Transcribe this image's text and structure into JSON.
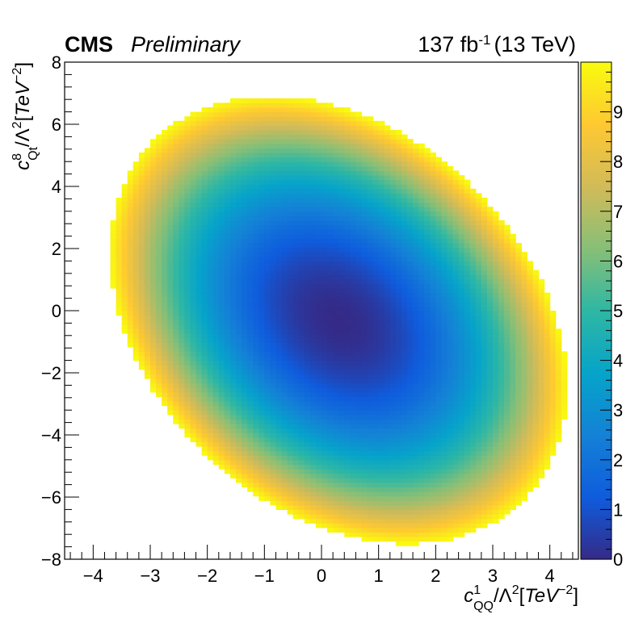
{
  "header": {
    "experiment": "CMS",
    "status": "Preliminary",
    "lumi_prefix": "137 fb",
    "lumi_exponent": "-1",
    "energy": "(13 TeV)"
  },
  "chart_data": {
    "type": "heatmap",
    "x_axis": {
      "symbol": "c",
      "superscript": "1",
      "subscript": "QQ",
      "unit_prefix": "/Λ",
      "unit_power": "2",
      "unit_open": "[",
      "unit_name": "TeV",
      "unit_exponent": "−2",
      "unit_close": "]",
      "range": [
        -4.5,
        4.5
      ],
      "ticks": [
        -4,
        -3,
        -2,
        -1,
        0,
        1,
        2,
        3,
        4
      ],
      "tick_labels": [
        "−4",
        "−3",
        "−2",
        "−1",
        "0",
        "1",
        "2",
        "3",
        "4"
      ]
    },
    "y_axis": {
      "symbol": "c",
      "superscript": "8",
      "subscript": "Qt",
      "unit_prefix": "/Λ",
      "unit_power": "2",
      "unit_open": "[",
      "unit_name": "TeV",
      "unit_exponent": "−2",
      "unit_close": "]",
      "range": [
        -8,
        8
      ],
      "ticks": [
        -8,
        -6,
        -4,
        -2,
        0,
        2,
        4,
        6,
        8
      ],
      "tick_labels": [
        "−8",
        "−6",
        "−4",
        "−2",
        "0",
        "2",
        "4",
        "6",
        "8"
      ]
    },
    "z_axis": {
      "range": [
        0,
        10
      ],
      "ticks": [
        0,
        1,
        2,
        3,
        4,
        5,
        6,
        7,
        8,
        9
      ],
      "tick_labels": [
        "0",
        "1",
        "2",
        "3",
        "4",
        "5",
        "6",
        "7",
        "8",
        "9"
      ],
      "palette": [
        "#352a87",
        "#0f5cdd",
        "#1481d6",
        "#06a4ca",
        "#2eb7a4",
        "#87bf77",
        "#d1bb59",
        "#fec832",
        "#f9fb0e"
      ]
    },
    "surface": {
      "description_free_model": "quadratic",
      "center": [
        0.3,
        -0.3
      ],
      "minimum_z": 0,
      "radius_at_z10": [
        4.0,
        7.2
      ],
      "correlation": -0.3,
      "bins_x": 90,
      "bins_y": 110
    }
  }
}
